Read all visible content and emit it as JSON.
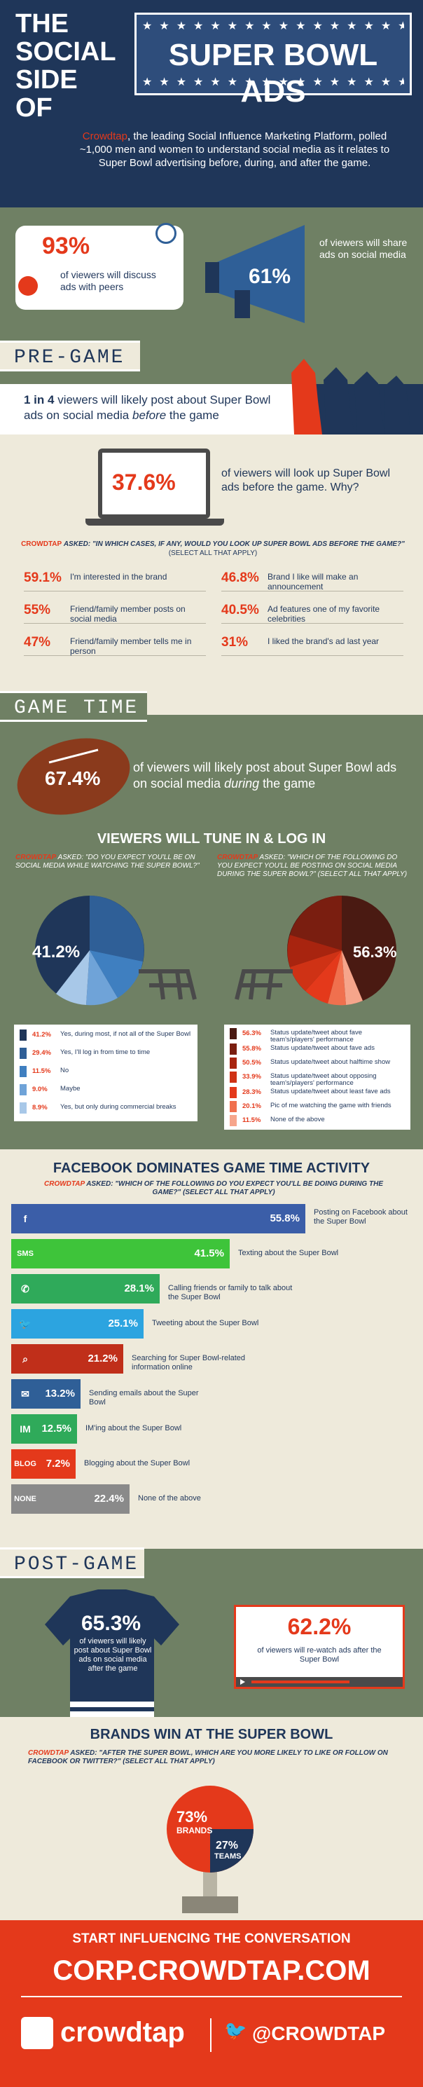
{
  "header": {
    "title_lines": [
      "THE",
      "SOCIAL",
      "SIDE OF"
    ],
    "banner": "SUPER BOWL ADS",
    "intro_brand": "Crowdtap",
    "intro_rest": ", the leading Social Influence Marketing Platform, polled ~1,000 men and women to understand social media as it relates to Super Bowl advertising before, during, and after the game."
  },
  "top_stats": {
    "discuss_pct": "93%",
    "discuss_text": "of viewers will discuss ads with peers",
    "share_pct": "61%",
    "share_text": "of viewers will share ads on social media"
  },
  "pregame": {
    "tab": "PRE-GAME",
    "post_stat_bold": "1 in 4",
    "post_stat_rest": " viewers will likely post about Super Bowl ads on social media ",
    "post_stat_em": "before",
    "post_stat_end": " the game",
    "lookup_pct": "37.6%",
    "lookup_text": "of viewers will look up Super Bowl ads before the game. Why?",
    "asked_brand": "CROWDTAP",
    "asked_q": "ASKED: \"IN WHICH CASES, IF ANY, WOULD YOU LOOK UP SUPER BOWL ADS BEFORE THE GAME?\"",
    "asked_note": "(SELECT ALL THAT APPLY)",
    "reasons": [
      {
        "pct": "59.1%",
        "label": "I'm interested in the brand"
      },
      {
        "pct": "46.8%",
        "label": "Brand I like will make an announcement"
      },
      {
        "pct": "55%",
        "label": "Friend/family member posts on social media"
      },
      {
        "pct": "40.5%",
        "label": "Ad features one of my favorite celebrities"
      },
      {
        "pct": "47%",
        "label": "Friend/family member tells me in person"
      },
      {
        "pct": "31%",
        "label": "I liked the brand's ad last year"
      }
    ]
  },
  "gametime": {
    "tab": "GAME TIME",
    "football_pct": "67.4%",
    "football_text_a": "of viewers will likely post about Super Bowl ads on social media ",
    "football_text_em": "during",
    "football_text_b": " the game",
    "tune_title": "VIEWERS WILL TUNE IN & LOG IN",
    "left_q_brand": "CROWDTAP",
    "left_q": " ASKED: \"DO YOU EXPECT YOU'LL BE ON SOCIAL MEDIA WHILE WATCHING THE SUPER BOWL?\"",
    "right_q_brand": "CROWDTAP",
    "right_q": " ASKED: \"WHICH OF THE FOLLOWING DO YOU EXPECT YOU'LL BE POSTING ON SOCIAL MEDIA DURING THE SUPER BOWL?\" (SELECT ALL THAT APPLY)",
    "left_big": "41.2%",
    "right_big": "56.3%",
    "left_legend": [
      {
        "pct": "41.2%",
        "label": "Yes, during most, if not all of the Super Bowl",
        "color": "#1f3659"
      },
      {
        "pct": "29.4%",
        "label": "Yes, I'll log in from time to time",
        "color": "#2f5f97"
      },
      {
        "pct": "11.5%",
        "label": "No",
        "color": "#3f7fc0"
      },
      {
        "pct": "9.0%",
        "label": "Maybe",
        "color": "#6fa3d8"
      },
      {
        "pct": "8.9%",
        "label": "Yes, but only during commercial breaks",
        "color": "#a8c8e8"
      }
    ],
    "right_legend": [
      {
        "pct": "56.3%",
        "label": "Status update/tweet about fave team's/players' performance",
        "color": "#4a1a12"
      },
      {
        "pct": "55.8%",
        "label": "Status update/tweet about fave ads",
        "color": "#7a1e10"
      },
      {
        "pct": "50.5%",
        "label": "Status update/tweet about halftime show",
        "color": "#a8240f"
      },
      {
        "pct": "33.9%",
        "label": "Status update/tweet about opposing team's/players' performance",
        "color": "#cf3215"
      },
      {
        "pct": "28.3%",
        "label": "Status update/tweet about least fave ads",
        "color": "#e4391b"
      },
      {
        "pct": "20.1%",
        "label": "Pic of me watching the game with friends",
        "color": "#f0704e"
      },
      {
        "pct": "11.5%",
        "label": "None of the above",
        "color": "#f6a58b"
      }
    ],
    "fb_title": "FACEBOOK DOMINATES GAME TIME ACTIVITY",
    "fb_q_brand": "CROWDTAP",
    "fb_q": " ASKED: \"WHICH OF THE FOLLOWING DO YOU EXPECT YOU'LL BE DOING DURING THE GAME?\" (SELECT ALL THAT APPLY)",
    "activities": [
      {
        "icon": "f",
        "pct": "55.8%",
        "value": 55.8,
        "label": "Posting on Facebook about the Super Bowl",
        "color": "#3b5ea8"
      },
      {
        "icon": "SMS",
        "pct": "41.5%",
        "value": 41.5,
        "label": "Texting about the Super Bowl",
        "color": "#3ec43a"
      },
      {
        "icon": "✆",
        "pct": "28.1%",
        "value": 28.1,
        "label": "Calling friends or family to talk about the Super Bowl",
        "color": "#2faa5a"
      },
      {
        "icon": "🐦",
        "pct": "25.1%",
        "value": 25.1,
        "label": "Tweeting about the Super Bowl",
        "color": "#2ca4e0"
      },
      {
        "icon": "⌕",
        "pct": "21.2%",
        "value": 21.2,
        "label": "Searching for Super Bowl-related information online",
        "color": "#c02f1a"
      },
      {
        "icon": "✉",
        "pct": "13.2%",
        "value": 13.2,
        "label": "Sending emails about the Super Bowl",
        "color": "#2f5f97"
      },
      {
        "icon": "IM",
        "pct": "12.5%",
        "value": 12.5,
        "label": "IM'ing about the Super Bowl",
        "color": "#2faa5a"
      },
      {
        "icon": "BLOG",
        "pct": "7.2%",
        "value": 7.2,
        "label": "Blogging about the Super Bowl",
        "color": "#e4391b"
      },
      {
        "icon": "NONE",
        "pct": "22.4%",
        "value": 22.4,
        "label": "None of the above",
        "color": "#8a8a8a"
      }
    ]
  },
  "postgame": {
    "tab": "POST-GAME",
    "jersey_pct": "65.3%",
    "jersey_text": "of viewers will likely post about Super Bowl ads on social media after the game",
    "rewatch_pct": "62.2%",
    "rewatch_text": "of viewers will re-watch ads after the Super Bowl",
    "brands_title": "BRANDS WIN AT THE SUPER BOWL",
    "brands_q_brand": "CROWDTAP",
    "brands_q": " ASKED: \"AFTER THE SUPER BOWL, WHICH ARE YOU MORE LIKELY TO LIKE OR FOLLOW ON FACEBOOK OR TWITTER?\" (SELECT ALL THAT APPLY)",
    "brands_pct": "73%",
    "brands_label": "BRANDS",
    "teams_pct": "27%",
    "teams_label": "TEAMS"
  },
  "footer": {
    "cta": "START INFLUENCING THE CONVERSATION",
    "url": "CORP.CROWDTAP.COM",
    "logo": "crowdtap",
    "twitter": "@CROWDTAP"
  }
}
